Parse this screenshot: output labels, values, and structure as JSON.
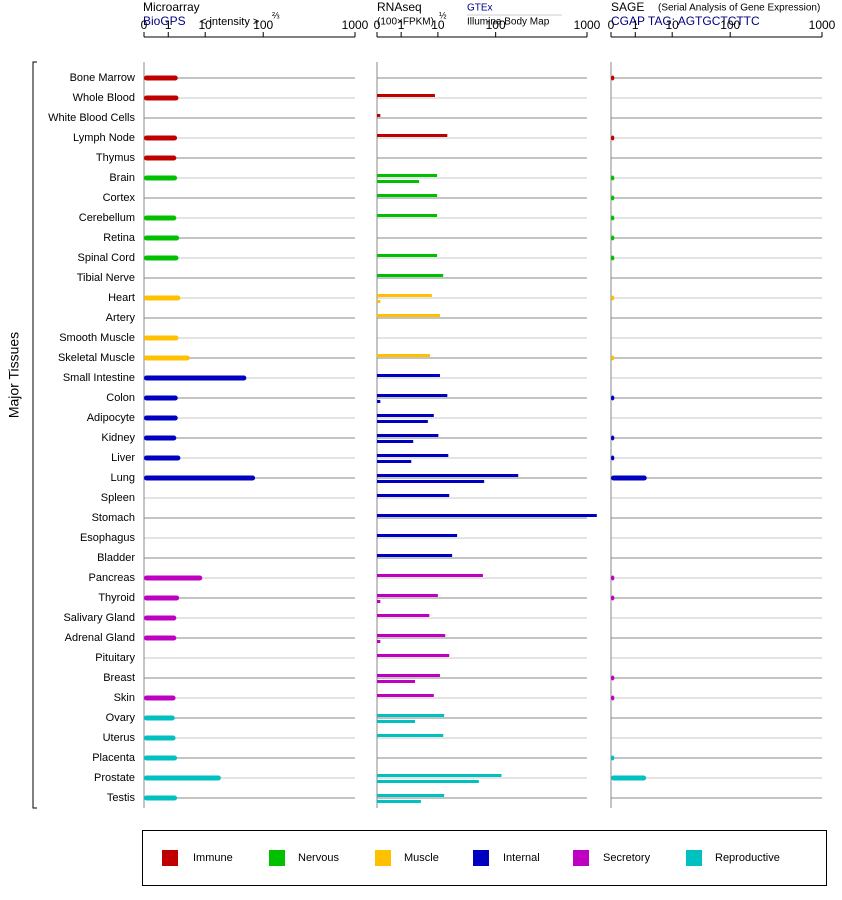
{
  "chart_data": {
    "type": "bar",
    "ylabel": "Major Tissues",
    "categories": [
      "Bone Marrow",
      "Whole Blood",
      "White Blood Cells",
      "Lymph Node",
      "Thymus",
      "Brain",
      "Cortex",
      "Cerebellum",
      "Retina",
      "Spinal Cord",
      "Tibial Nerve",
      "Heart",
      "Artery",
      "Smooth Muscle",
      "Skeletal Muscle",
      "Small Intestine",
      "Colon",
      "Adipocyte",
      "Kidney",
      "Liver",
      "Lung",
      "Spleen",
      "Stomach",
      "Esophagus",
      "Bladder",
      "Pancreas",
      "Thyroid",
      "Salivary Gland",
      "Adrenal Gland",
      "Pituitary",
      "Breast",
      "Skin",
      "Ovary",
      "Uterus",
      "Placenta",
      "Prostate",
      "Testis"
    ],
    "groups": [
      {
        "name": "Immune",
        "color": "#c00000"
      },
      {
        "name": "Nervous",
        "color": "#00c000"
      },
      {
        "name": "Muscle",
        "color": "#ffc000"
      },
      {
        "name": "Internal",
        "color": "#0000c0"
      },
      {
        "name": "Secretory",
        "color": "#c000c0"
      },
      {
        "name": "Reproductive",
        "color": "#00c0c0"
      }
    ],
    "category_groups": [
      0,
      0,
      0,
      0,
      0,
      1,
      1,
      1,
      1,
      1,
      1,
      2,
      2,
      2,
      2,
      3,
      3,
      3,
      3,
      3,
      3,
      3,
      3,
      3,
      3,
      4,
      4,
      4,
      4,
      4,
      4,
      4,
      5,
      5,
      5,
      5,
      5
    ],
    "panels": [
      {
        "title": "Microarray",
        "source": "BioGPS",
        "unit": "< intensity >",
        "unit_exponent": "⅔",
        "xlim": [
          0,
          1000
        ],
        "xticks": [
          0,
          1,
          10,
          100,
          1000
        ],
        "series": [
          {
            "values": [
              2.1,
              2.2,
              null,
              2.0,
              1.9,
              2.0,
              null,
              1.9,
              2.3,
              2.2,
              null,
              2.5,
              null,
              2.2,
              4.4,
              52,
              2.1,
              2.1,
              1.9,
              2.5,
              73,
              null,
              null,
              null,
              null,
              8.6,
              2.3,
              1.9,
              1.9,
              null,
              null,
              1.8,
              1.7,
              1.8,
              2.0,
              19,
              2.0
            ]
          }
        ]
      },
      {
        "title": "RNAseq",
        "unit": "(100×FPKM)",
        "unit_exponent": "½",
        "xlim": [
          0,
          1000
        ],
        "xticks": [
          0,
          1,
          10,
          100,
          1000
        ],
        "series": [
          {
            "name": "GTEx",
            "values": [
              null,
              8.6,
              0.1,
              14.8,
              null,
              9.6,
              9.6,
              9.6,
              null,
              9.6,
              12.5,
              7.3,
              10.9,
              null,
              6.6,
              10.9,
              14.8,
              8.1,
              10.2,
              15.4,
              177,
              16,
              1280,
              22,
              18,
              61,
              10,
              6.4,
              13.6,
              16,
              10.9,
              8.1,
              13,
              12.5,
              null,
              116,
              13
            ]
          },
          {
            "name": "Illumina Body Map",
            "values": [
              null,
              null,
              null,
              null,
              null,
              3.6,
              null,
              null,
              null,
              null,
              null,
              0.1,
              null,
              null,
              null,
              null,
              0.1,
              5.9,
              2.5,
              2.2,
              64,
              null,
              null,
              null,
              null,
              null,
              0.1,
              null,
              0.1,
              null,
              2.8,
              null,
              2.8,
              null,
              null,
              52,
              4.0
            ]
          }
        ]
      },
      {
        "title": "SAGE",
        "subtitle": "(Serial Analysis of Gene Expression)",
        "source": "CGAP TAG: AGTGCTCTTC",
        "xlim": [
          0,
          1000
        ],
        "xticks": [
          0,
          1,
          10,
          100,
          1000
        ],
        "series": [
          {
            "values": [
              0.1,
              null,
              null,
              0.1,
              null,
              0.1,
              0.1,
              0.1,
              0.1,
              0.1,
              null,
              0.1,
              null,
              null,
              0.1,
              null,
              0.1,
              null,
              0.1,
              0.1,
              2.4,
              null,
              null,
              null,
              null,
              0.1,
              0.1,
              null,
              null,
              null,
              0.1,
              0.1,
              null,
              null,
              0.1,
              2.3,
              null
            ]
          }
        ]
      }
    ]
  }
}
